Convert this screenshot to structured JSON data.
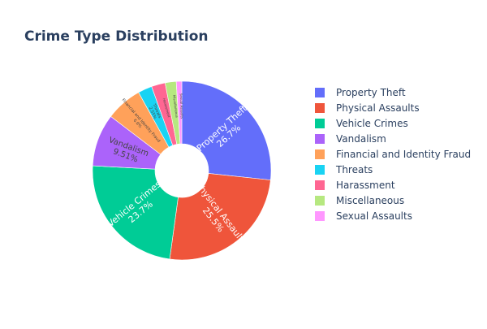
{
  "chart_data": {
    "type": "pie",
    "title": "Crime Type Distribution",
    "hole": true,
    "categories": [
      "Property Theft",
      "Physical Assaults",
      "Vehicle Crimes",
      "Vandalism",
      "Financial and Identity Fraud",
      "Threats",
      "Harassment",
      "Miscellaneous",
      "Sexual Assaults"
    ],
    "values": [
      26.7,
      25.5,
      23.7,
      9.51,
      6.6,
      2.55,
      2.5,
      2.0,
      1.0
    ],
    "labels": [
      "26.7%",
      "25.5%",
      "23.7%",
      "9.51%",
      "6.6%",
      "2.55%",
      "",
      "",
      ""
    ],
    "colors": [
      "#636efa",
      "#ef553b",
      "#00cc96",
      "#ab63fa",
      "#ffa15a",
      "#19d3f3",
      "#ff6692",
      "#b6e880",
      "#ff97ff"
    ],
    "legend_position": "right"
  }
}
